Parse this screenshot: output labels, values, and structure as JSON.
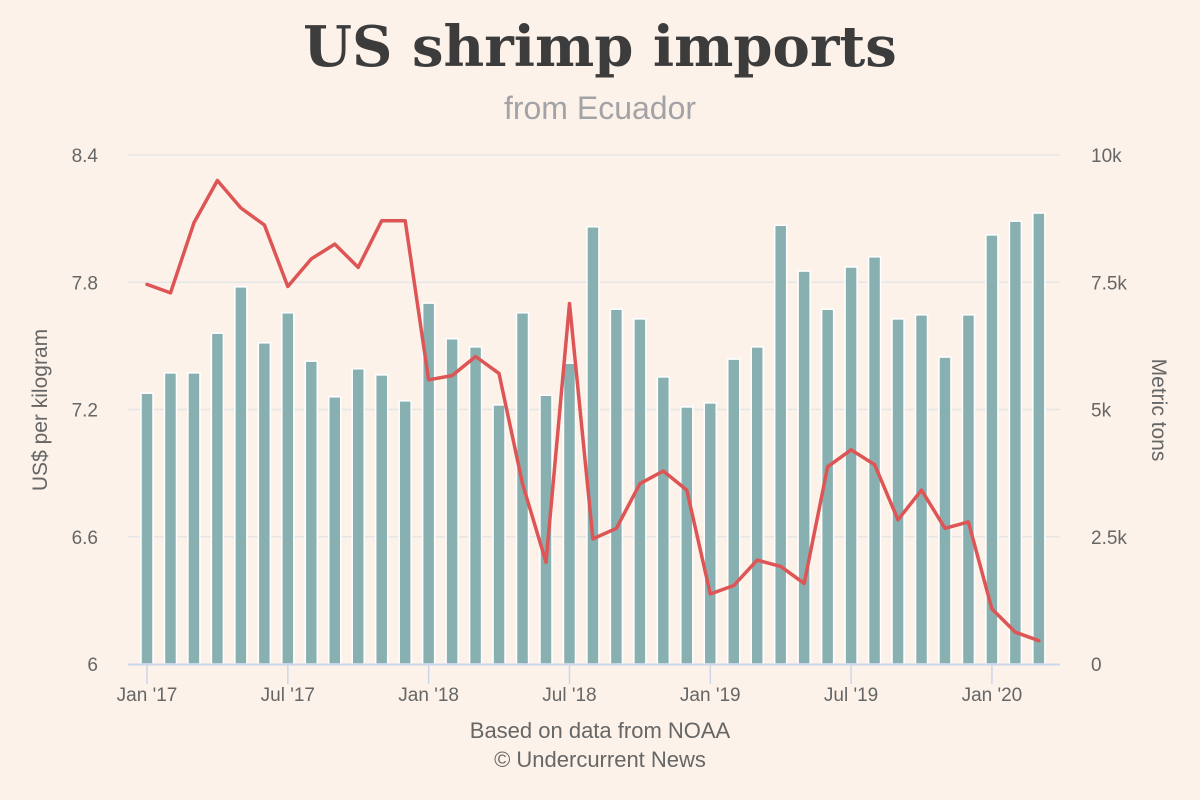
{
  "title": "US shrimp imports",
  "subtitle": "from Ecuador",
  "credits": [
    "Based on data from NOAA",
    "© Undercurrent News"
  ],
  "colors": {
    "bar": "#88b0b1",
    "line": "#dd5555",
    "background": "#fcf2e9",
    "grid": "#e6e6e6",
    "axis": "#ccd6eb"
  },
  "chart_data": {
    "type": "bar+line",
    "title": "US shrimp imports",
    "subtitle": "from Ecuador",
    "x_tick_labels": [
      "Jan '17",
      "Jul '17",
      "Jan '18",
      "Jul '18",
      "Jan '19",
      "Jul '19",
      "Jan '20"
    ],
    "x_tick_month_index": [
      0,
      6,
      12,
      18,
      24,
      30,
      36
    ],
    "months": [
      "2017-01",
      "2017-02",
      "2017-03",
      "2017-04",
      "2017-05",
      "2017-06",
      "2017-07",
      "2017-08",
      "2017-09",
      "2017-10",
      "2017-11",
      "2017-12",
      "2018-01",
      "2018-02",
      "2018-03",
      "2018-04",
      "2018-05",
      "2018-06",
      "2018-07",
      "2018-08",
      "2018-09",
      "2018-10",
      "2018-11",
      "2018-12",
      "2019-01",
      "2019-02",
      "2019-03",
      "2019-04",
      "2019-05",
      "2019-06",
      "2019-07",
      "2019-08",
      "2019-09",
      "2019-10",
      "2019-11",
      "2019-12",
      "2020-01",
      "2020-02",
      "2020-03"
    ],
    "left_axis": {
      "label": "US$ per kilogram",
      "range": [
        6,
        8.4
      ],
      "ticks": [
        6,
        6.6,
        7.2,
        7.8,
        8.4
      ],
      "tick_labels": [
        "6",
        "6.6",
        "7.2",
        "7.8",
        "8.4"
      ]
    },
    "right_axis": {
      "label": "Metric tons",
      "range": [
        0,
        10000
      ],
      "ticks": [
        0,
        2500,
        5000,
        7500,
        10000
      ],
      "tick_labels": [
        "0",
        "2.5k",
        "5k",
        "7.5k",
        "10k"
      ]
    },
    "series": [
      {
        "name": "Volume (metric tons)",
        "type": "bar",
        "axis": "right",
        "values": [
          5320,
          5720,
          5720,
          6500,
          7410,
          6310,
          6900,
          5950,
          5250,
          5800,
          5680,
          5170,
          7090,
          6390,
          6230,
          5090,
          6900,
          5280,
          5910,
          8590,
          6970,
          6780,
          5640,
          5050,
          5130,
          5990,
          6230,
          8620,
          7720,
          6970,
          7800,
          8000,
          6780,
          6860,
          6030,
          6860,
          8430,
          8700,
          8860
        ]
      },
      {
        "name": "Price (US$ per kilogram)",
        "type": "line",
        "axis": "left",
        "values": [
          7.79,
          7.75,
          8.08,
          8.28,
          8.15,
          8.07,
          7.78,
          7.91,
          7.98,
          7.87,
          8.09,
          8.09,
          7.34,
          7.36,
          7.45,
          7.37,
          6.85,
          6.48,
          7.7,
          6.59,
          6.64,
          6.85,
          6.91,
          6.82,
          6.33,
          6.37,
          6.49,
          6.46,
          6.38,
          6.93,
          7.01,
          6.94,
          6.68,
          6.82,
          6.64,
          6.67,
          6.26,
          6.15,
          6.11
        ]
      }
    ],
    "grid": true,
    "legend": "none"
  }
}
